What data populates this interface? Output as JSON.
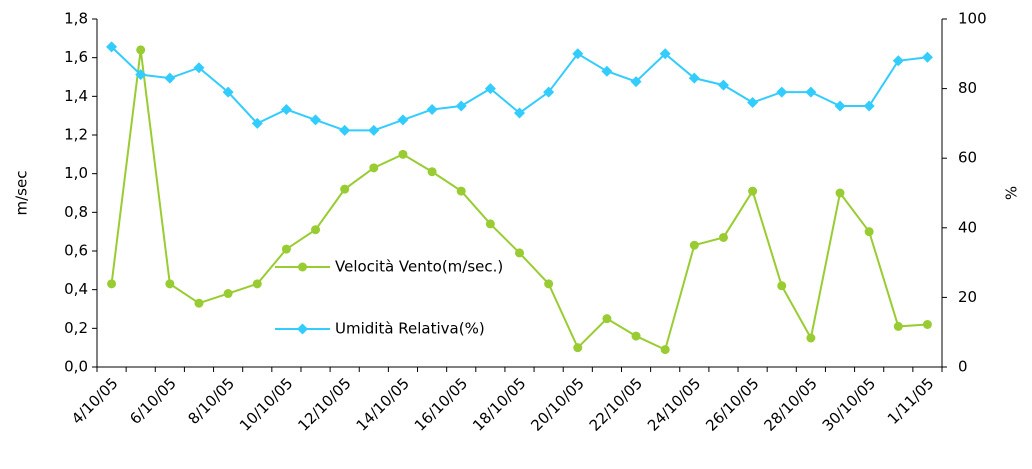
{
  "chart_data": {
    "type": "line",
    "categories": [
      "4/10/05",
      null,
      "6/10/05",
      null,
      "8/10/05",
      null,
      "10/10/05",
      null,
      "12/10/05",
      null,
      "14/10/05",
      null,
      "16/10/05",
      null,
      "18/10/05",
      null,
      "20/10/05",
      null,
      "22/10/05",
      null,
      "24/10/05",
      null,
      "26/10/05",
      null,
      "28/10/05",
      null,
      "30/10/05",
      null,
      "1/11/05"
    ],
    "series": [
      {
        "name": "Velocità Vento(m/sec.)",
        "color": "#99cc33",
        "marker": "circle",
        "values": [
          0.43,
          1.64,
          0.43,
          0.33,
          0.38,
          0.43,
          0.61,
          0.71,
          0.92,
          1.03,
          1.1,
          1.01,
          0.91,
          0.74,
          0.59,
          0.43,
          0.1,
          0.25,
          0.16,
          0.09,
          0.63,
          0.67,
          0.91,
          0.42,
          0.15,
          0.9,
          0.7,
          0.21,
          0.22
        ]
      },
      {
        "name": "Umidità Relativa(%)",
        "color": "#33ccff",
        "marker": "diamond",
        "axis": "y2",
        "values": [
          92,
          84,
          83,
          86,
          79,
          70,
          74,
          71,
          68,
          68,
          71,
          74,
          75,
          80,
          73,
          79,
          90,
          85,
          82,
          90,
          83,
          81,
          76,
          79,
          79,
          75,
          75,
          88,
          89
        ]
      }
    ],
    "ylabel": "m/sec",
    "y2label": "%",
    "ylim": [
      0,
      1.8
    ],
    "yticks": [
      {
        "value": 0,
        "label": "0,0"
      },
      {
        "value": 0.2,
        "label": "0,2"
      },
      {
        "value": 0.4,
        "label": "0,4"
      },
      {
        "value": 0.6,
        "label": "0,6"
      },
      {
        "value": 0.8,
        "label": "0,8"
      },
      {
        "value": 1.0,
        "label": "1,0"
      },
      {
        "value": 1.2,
        "label": "1,2"
      },
      {
        "value": 1.4,
        "label": "1,4"
      },
      {
        "value": 1.6,
        "label": "1,6"
      },
      {
        "value": 1.8,
        "label": "1,8"
      }
    ],
    "y2lim": [
      0,
      100
    ],
    "y2ticks": [
      0,
      20,
      40,
      60,
      80,
      100
    ],
    "legend": "center",
    "grid": false
  }
}
